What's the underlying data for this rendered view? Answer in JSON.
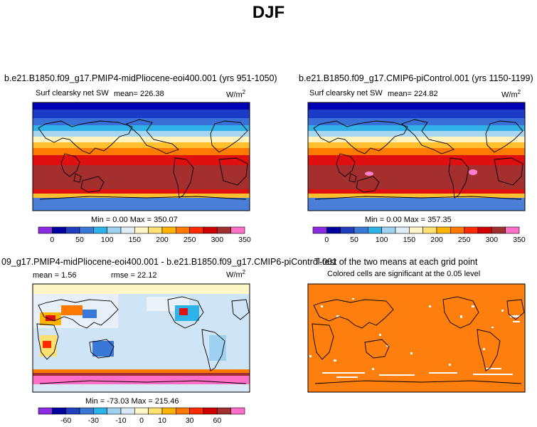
{
  "header": {
    "title": "DJF"
  },
  "panels": [
    {
      "title": "b.e21.B1850.f09_g17.PMIP4-midPliocene-eoi400.001 (yrs 951-1050)",
      "variable": "Surf clearsky net SW",
      "mean_label": "mean=",
      "mean_value": "226.38",
      "units_base": "W/m",
      "units_exp": "2",
      "min_label": "Min =",
      "min_value": "0.00",
      "max_label": "Max =",
      "max_value": "350.07"
    },
    {
      "title": "b.e21.B1850.f09_g17.CMIP6-piControl.001 (yrs 1150-1199)",
      "variable": "Surf clearsky net SW",
      "mean_label": "mean=",
      "mean_value": "224.82",
      "units_base": "W/m",
      "units_exp": "2",
      "min_label": "Min =",
      "min_value": "0.00",
      "max_label": "Max =",
      "max_value": "357.35"
    },
    {
      "title": "09_g17.PMIP4-midPliocene-eoi400.001 - b.e21.B1850.f09_g17.CMIP6-piControl.001",
      "mean_label": "mean =",
      "mean_value": "1.56",
      "rmse_label": "rmse =",
      "rmse_value": "22.12",
      "units_base": "W/m",
      "units_exp": "2",
      "min_label": "Min =",
      "min_value": "-73.03",
      "max_label": "Max =",
      "max_value": "215.46"
    },
    {
      "title": "T-test of the two means at each grid point",
      "subtitle": "Colored cells are significant at the 0.05 level"
    }
  ],
  "chart_data": [
    {
      "type": "heatmap",
      "title": "b.e21.B1850.f09_g17.PMIP4-midPliocene-eoi400.001 (yrs 951-1050)",
      "variable": "Surf clearsky net SW",
      "mean": 226.38,
      "min": 0.0,
      "max": 350.07,
      "colorbar_ticks": [
        "0",
        "50",
        "100",
        "150",
        "200",
        "250",
        "300",
        "350"
      ],
      "colorbar_colors": [
        "#8a2be2",
        "#0000a0",
        "#1f3fbf",
        "#3a78d8",
        "#2db3e8",
        "#9fd2f0",
        "#e0ecf6",
        "#fff6c8",
        "#ffe070",
        "#ffb400",
        "#ff7800",
        "#ff2a00",
        "#d00000",
        "#a03030",
        "#ff6fc8"
      ]
    },
    {
      "type": "heatmap",
      "title": "b.e21.B1850.f09_g17.CMIP6-piControl.001 (yrs 1150-1199)",
      "variable": "Surf clearsky net SW",
      "mean": 224.82,
      "min": 0.0,
      "max": 357.35,
      "colorbar_ticks": [
        "0",
        "50",
        "100",
        "150",
        "200",
        "250",
        "300",
        "350"
      ],
      "colorbar_colors": [
        "#8a2be2",
        "#0000a0",
        "#1f3fbf",
        "#3a78d8",
        "#2db3e8",
        "#9fd2f0",
        "#e0ecf6",
        "#fff6c8",
        "#ffe070",
        "#ffb400",
        "#ff7800",
        "#ff2a00",
        "#d00000",
        "#a03030",
        "#ff6fc8"
      ]
    },
    {
      "type": "heatmap",
      "title": "09_g17.PMIP4-midPliocene-eoi400.001 - b.e21.B1850.f09_g17.CMIP6-piControl.001",
      "mean": 1.56,
      "rmse": 22.12,
      "min": -73.03,
      "max": 215.46,
      "colorbar_ticks": [
        "-60",
        "-30",
        "-10",
        "0",
        "10",
        "30",
        "60"
      ],
      "colorbar_colors": [
        "#8a2be2",
        "#0000a0",
        "#1f3fbf",
        "#3a78d8",
        "#2db3e8",
        "#9fd2f0",
        "#d8e8f6",
        "#fff6c8",
        "#ffe070",
        "#ffb400",
        "#ff7800",
        "#ff2a00",
        "#d00000",
        "#a03030",
        "#ff6fc8"
      ]
    },
    {
      "type": "heatmap",
      "title": "T-test of the two means at each grid point",
      "subtitle": "Colored cells are significant at the 0.05 level",
      "significant_color": "#ff7f0e"
    }
  ]
}
